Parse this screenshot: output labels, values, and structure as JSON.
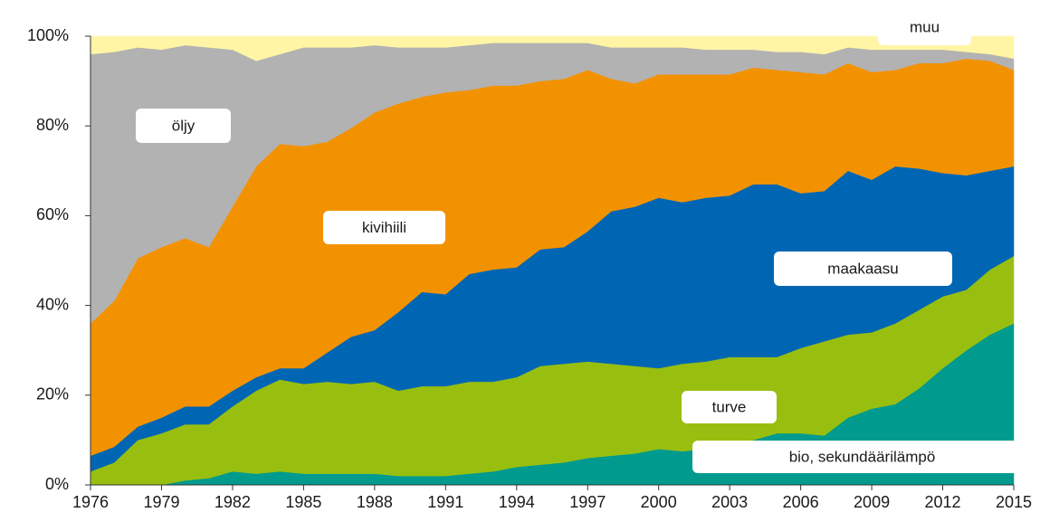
{
  "chart_data": {
    "type": "stacked_area",
    "x": [
      1976,
      1977,
      1978,
      1979,
      1980,
      1981,
      1982,
      1983,
      1984,
      1985,
      1986,
      1987,
      1988,
      1989,
      1990,
      1991,
      1992,
      1993,
      1994,
      1995,
      1996,
      1997,
      1998,
      1999,
      2000,
      2001,
      2002,
      2003,
      2004,
      2005,
      2006,
      2007,
      2008,
      2009,
      2010,
      2011,
      2012,
      2013,
      2014,
      2015
    ],
    "series": [
      {
        "name": "bio, sekundäärilämpö",
        "color": "#009a8e",
        "values": [
          0,
          0,
          0,
          0,
          1,
          1.5,
          3,
          2.5,
          3,
          2.5,
          2.5,
          2.5,
          2.5,
          2,
          2,
          2,
          2.5,
          3,
          4,
          4.5,
          5,
          6,
          6.5,
          7,
          8,
          7.5,
          8,
          9,
          10,
          11.5,
          11.5,
          11,
          15,
          17,
          18,
          21.5,
          26,
          30,
          33.5,
          36
        ]
      },
      {
        "name": "turve",
        "color": "#98bf0f",
        "values": [
          3,
          5,
          10,
          11.5,
          12.5,
          12,
          14.5,
          18.5,
          20.5,
          20,
          20.5,
          20,
          20.5,
          19,
          20,
          20,
          20.5,
          20,
          20,
          22,
          22,
          21.5,
          20.5,
          19.5,
          18,
          19.5,
          19.5,
          19.5,
          18.5,
          17,
          19,
          21,
          18.5,
          17,
          18,
          17.5,
          16,
          13.5,
          14.5,
          15
        ]
      },
      {
        "name": "maakaasu",
        "color": "#0066b3",
        "values": [
          3.5,
          3.5,
          3,
          3.5,
          4,
          4,
          3.5,
          3,
          2.5,
          3.5,
          6.5,
          10.5,
          11.5,
          17.5,
          21,
          20.5,
          24,
          25,
          24.5,
          26,
          26,
          29,
          34,
          35.5,
          38,
          36,
          36.5,
          36,
          38.5,
          38.5,
          34.5,
          33.5,
          36.5,
          34,
          35,
          31.5,
          27.5,
          25.5,
          22,
          20
        ]
      },
      {
        "name": "kivihiili",
        "color": "#f39200",
        "values": [
          29.5,
          32.5,
          37.5,
          38,
          37.5,
          35.5,
          41,
          47,
          50,
          49.5,
          47,
          46.5,
          48.5,
          46.5,
          43.5,
          45,
          41,
          41,
          40.5,
          37.5,
          37.5,
          36,
          29.5,
          27.5,
          27.5,
          28.5,
          27.5,
          27,
          26,
          25.5,
          27,
          26,
          24,
          24,
          21.5,
          23.5,
          24.5,
          26,
          24.5,
          21.5
        ]
      },
      {
        "name": "öljy",
        "color": "#b2b2b3",
        "values": [
          60,
          55.5,
          47,
          44,
          43,
          44.5,
          35,
          23.5,
          20,
          22,
          21,
          18,
          15,
          12.5,
          11,
          10,
          10,
          9.5,
          9.5,
          8.5,
          8,
          6,
          7,
          8,
          6,
          6,
          5.5,
          5.5,
          4,
          4,
          4.5,
          4.5,
          3.5,
          5,
          4.5,
          3,
          3,
          1.5,
          1.5,
          2.5
        ]
      },
      {
        "name": "muu",
        "color": "#fff5a5",
        "values": [
          4,
          3.5,
          2.5,
          3,
          2,
          2.5,
          3,
          5.5,
          4,
          2.5,
          2.5,
          2.5,
          2,
          2.5,
          2.5,
          2.5,
          2,
          1.5,
          1.5,
          1.5,
          1.5,
          1.5,
          2.5,
          2.5,
          2.5,
          2.5,
          3,
          3,
          3,
          3.5,
          3.5,
          4,
          2.5,
          3,
          3,
          3,
          3,
          3.5,
          4,
          5
        ]
      }
    ],
    "xlim": [
      1976,
      2015
    ],
    "xticks": [
      1976,
      1979,
      1982,
      1985,
      1988,
      1991,
      1994,
      1997,
      2000,
      2003,
      2006,
      2009,
      2012,
      2015
    ],
    "ylim": [
      0,
      100
    ],
    "yticks": [
      {
        "value": 0,
        "label": "0%"
      },
      {
        "value": 20,
        "label": "20%"
      },
      {
        "value": 40,
        "label": "40%"
      },
      {
        "value": 60,
        "label": "60%"
      },
      {
        "value": 80,
        "label": "80%"
      },
      {
        "value": 100,
        "label": "100%"
      }
    ]
  }
}
